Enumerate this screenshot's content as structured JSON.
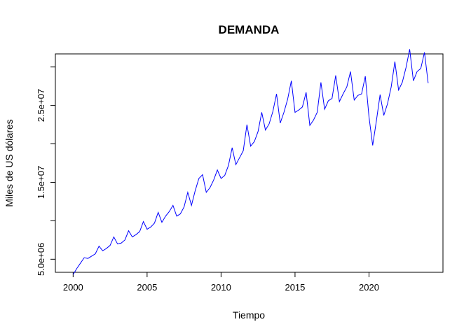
{
  "chart_data": {
    "type": "line",
    "title": "DEMANDA",
    "xlabel": "Tiempo",
    "ylabel": "Miles de US dólares",
    "xlim": [
      1998.8,
      2025.0
    ],
    "ylim": [
      3300000,
      31700000
    ],
    "x_ticks": [
      2000,
      2005,
      2010,
      2015,
      2020
    ],
    "x_tick_labels": [
      "2000",
      "2005",
      "2010",
      "2015",
      "2020"
    ],
    "y_ticks": [
      5000000,
      10000000,
      15000000,
      20000000,
      25000000,
      30000000
    ],
    "y_tick_labels": [
      "5.0e+06",
      "",
      "1.5e+07",
      "",
      "2.5e+07",
      ""
    ],
    "grid": false,
    "series_color": "#0000ff",
    "series": [
      {
        "x": [
          2000.0,
          2000.25,
          2000.5,
          2000.75,
          2001.0,
          2001.25,
          2001.5,
          2001.75,
          2002.0,
          2002.25,
          2002.5,
          2002.75,
          2003.0,
          2003.25,
          2003.5,
          2003.75,
          2004.0,
          2004.25,
          2004.5,
          2004.75,
          2005.0,
          2005.25,
          2005.5,
          2005.75,
          2006.0,
          2006.25,
          2006.5,
          2006.75,
          2007.0,
          2007.25,
          2007.5,
          2007.75,
          2008.0,
          2008.25,
          2008.5,
          2008.75,
          2009.0,
          2009.25,
          2009.5,
          2009.75,
          2010.0,
          2010.25,
          2010.5,
          2010.75,
          2011.0,
          2011.25,
          2011.5,
          2011.75,
          2012.0,
          2012.25,
          2012.5,
          2012.75,
          2013.0,
          2013.25,
          2013.5,
          2013.75,
          2014.0,
          2014.25,
          2014.5,
          2014.75,
          2015.0,
          2015.25,
          2015.5,
          2015.75,
          2016.0,
          2016.25,
          2016.5,
          2016.75,
          2017.0,
          2017.25,
          2017.5,
          2017.75,
          2018.0,
          2018.25,
          2018.5,
          2018.75,
          2019.0,
          2019.25,
          2019.5,
          2019.75,
          2020.0,
          2020.25,
          2020.5,
          2020.75,
          2021.0,
          2021.25,
          2021.5,
          2021.75,
          2022.0,
          2022.25,
          2022.5,
          2022.75,
          2023.0,
          2023.25,
          2023.5,
          2023.75,
          2024.0
        ],
        "values": [
          3000000,
          3800000,
          4500000,
          5200000,
          5100000,
          5400000,
          5700000,
          6700000,
          6100000,
          6400000,
          6800000,
          7900000,
          7000000,
          7100000,
          7500000,
          8700000,
          7900000,
          8200000,
          8600000,
          9900000,
          8900000,
          9200000,
          9700000,
          11100000,
          9800000,
          10600000,
          11200000,
          12000000,
          10600000,
          10900000,
          11800000,
          13700000,
          12000000,
          13900000,
          15500000,
          16000000,
          13700000,
          14300000,
          15300000,
          16600000,
          15500000,
          15900000,
          17200000,
          19500000,
          17300000,
          18200000,
          19100000,
          22500000,
          19700000,
          20300000,
          21600000,
          24100000,
          21800000,
          22600000,
          24200000,
          26500000,
          22700000,
          24100000,
          25800000,
          28200000,
          24100000,
          24400000,
          24800000,
          26700000,
          22400000,
          23100000,
          24100000,
          28000000,
          24500000,
          25600000,
          25900000,
          28900000,
          25500000,
          26500000,
          27400000,
          29400000,
          25700000,
          26300000,
          26500000,
          28800000,
          23500000,
          19800000,
          23000000,
          26400000,
          23700000,
          25200000,
          27400000,
          30700000,
          27000000,
          28000000,
          29900000,
          32300000,
          28200000,
          29400000,
          29800000,
          31900000,
          27900000
        ]
      }
    ]
  }
}
